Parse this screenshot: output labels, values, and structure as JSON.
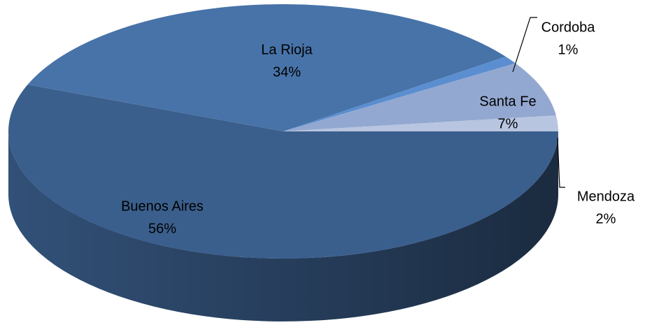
{
  "chart_data": {
    "type": "pie3d",
    "labels": [
      "Buenos Aires",
      "La Rioja",
      "Cordoba",
      "Santa Fe",
      "Mendoza"
    ],
    "values": [
      56,
      34,
      1,
      7,
      2
    ],
    "value_labels": [
      "56%",
      "34%",
      "1%",
      "7%",
      "2%"
    ],
    "colors": [
      "#3b5f8d",
      "#4873a8",
      "#5a8ed0",
      "#93a8d0",
      "#b8c5e0"
    ]
  }
}
